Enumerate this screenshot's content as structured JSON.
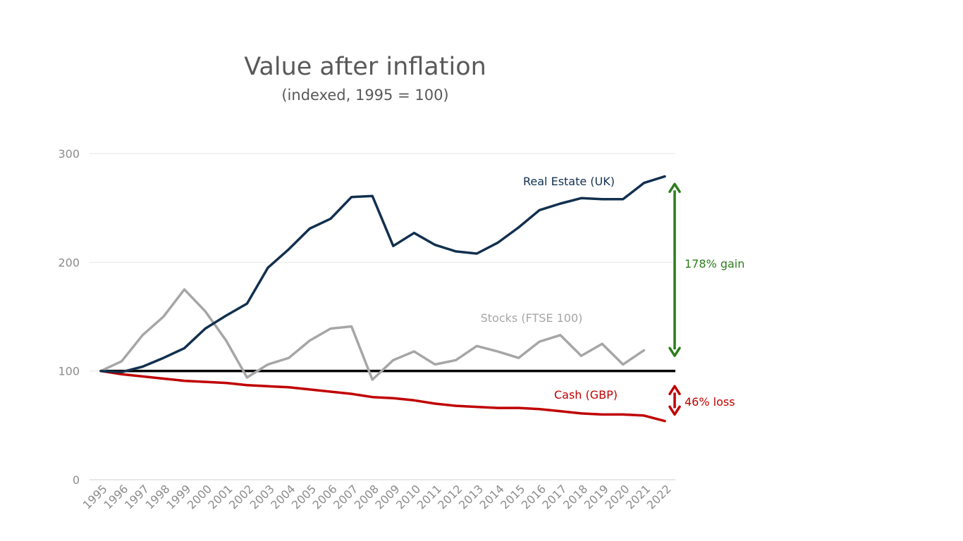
{
  "chart_data": {
    "type": "line",
    "title": "Value after inflation",
    "subtitle": "(indexed, 1995 = 100)",
    "xlabel": "",
    "ylabel": "",
    "ylim": [
      0,
      300
    ],
    "yticks": [
      0,
      100,
      200,
      300
    ],
    "grid": true,
    "categories": [
      "1995",
      "1996",
      "1997",
      "1998",
      "1999",
      "2000",
      "2001",
      "2002",
      "2003",
      "2004",
      "2005",
      "2006",
      "2007",
      "2008",
      "2009",
      "2010",
      "2011",
      "2012",
      "2013",
      "2014",
      "2015",
      "2016",
      "2017",
      "2018",
      "2019",
      "2020",
      "2021",
      "2022"
    ],
    "series": [
      {
        "name": "Real Estate (UK)",
        "color": "#12304f",
        "values": [
          100,
          99,
          104,
          112,
          121,
          139,
          151,
          162,
          195,
          212,
          231,
          240,
          260,
          261,
          215,
          227,
          216,
          210,
          208,
          218,
          232,
          248,
          254,
          259,
          258,
          258,
          273,
          279
        ]
      },
      {
        "name": "Stocks (FTSE 100)",
        "color": "#a6a6a6",
        "values": [
          100,
          109,
          133,
          150,
          175,
          155,
          128,
          94,
          106,
          112,
          128,
          139,
          141,
          92,
          110,
          118,
          106,
          110,
          123,
          118,
          112,
          127,
          133,
          114,
          125,
          106,
          119,
          null
        ]
      },
      {
        "name": "Cash (GBP)",
        "color": "#c00000",
        "values": [
          100,
          97,
          95,
          93,
          91,
          90,
          89,
          87,
          86,
          85,
          83,
          81,
          79,
          76,
          75,
          73,
          70,
          68,
          67,
          66,
          66,
          65,
          63,
          61,
          60,
          60,
          59,
          54
        ]
      }
    ],
    "baseline": {
      "value": 100,
      "color": "#000000"
    },
    "annotations": [
      {
        "text": "178% gain",
        "color": "#2e7d1c",
        "from": 272,
        "to": 114
      },
      {
        "text": "46% loss",
        "color": "#c00000",
        "from": 86,
        "to": 60
      }
    ]
  }
}
